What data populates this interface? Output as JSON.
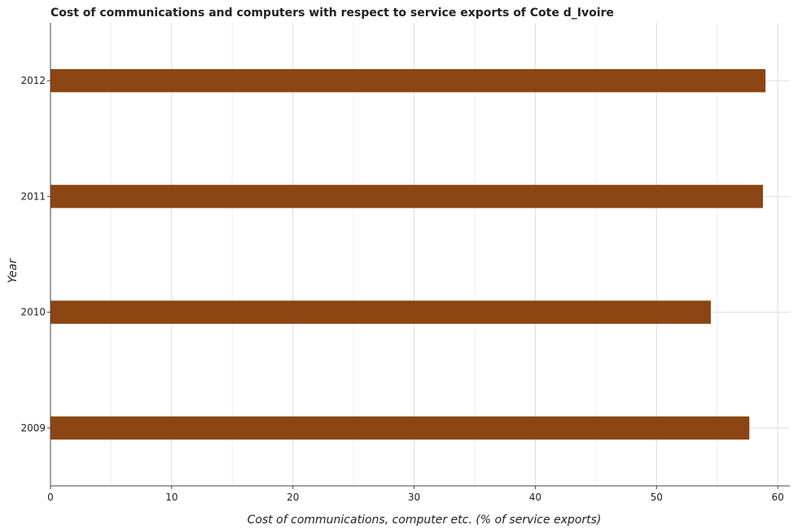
{
  "chart_data": {
    "type": "bar",
    "orientation": "horizontal",
    "title": "Cost of communications and computers with respect to service exports of Cote d_Ivoire",
    "xlabel": "Cost of communications, computer etc. (% of service exports)",
    "ylabel": "Year",
    "categories": [
      "2009",
      "2010",
      "2011",
      "2012"
    ],
    "values": [
      57.66,
      54.48,
      58.78,
      58.99
    ],
    "xlim": [
      0,
      61
    ],
    "xticks": [
      "0",
      "10",
      "20",
      "30",
      "40",
      "50",
      "60"
    ],
    "grid": true,
    "bar_color": "#8b4513"
  }
}
